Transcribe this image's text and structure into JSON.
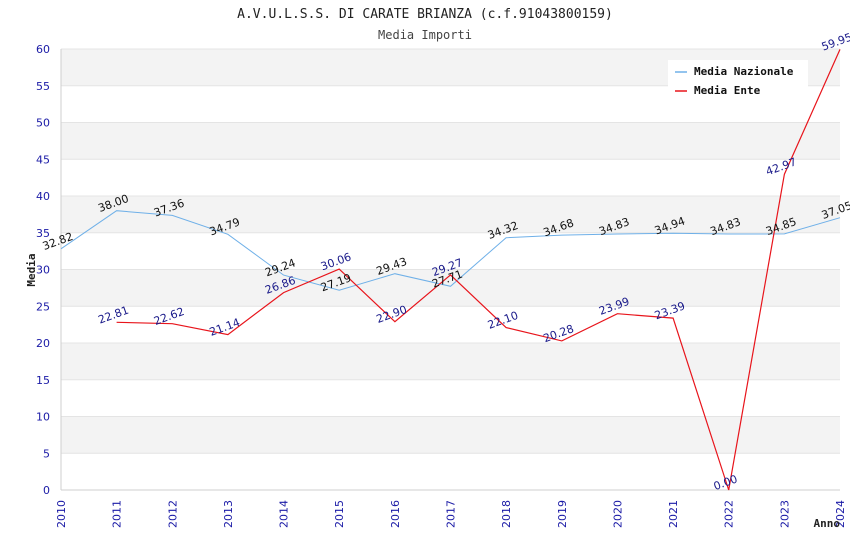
{
  "chart_data": {
    "type": "line",
    "title": "A.V.U.L.S.S. DI CARATE BRIANZA (c.f.91043800159)",
    "subtitle": "Media Importi",
    "xlabel": "Anno",
    "ylabel": "Media",
    "ylim": [
      0,
      60
    ],
    "yticks": [
      0,
      5,
      10,
      15,
      20,
      25,
      30,
      35,
      40,
      45,
      50,
      55,
      60
    ],
    "categories": [
      "2010",
      "2011",
      "2012",
      "2013",
      "2014",
      "2015",
      "2016",
      "2017",
      "2018",
      "2019",
      "2020",
      "2021",
      "2022",
      "2023",
      "2024"
    ],
    "grid": "horizontal alternating bands",
    "legend_position": "top-right",
    "series": [
      {
        "name": "Media Nazionale",
        "color": "#6fb0e8",
        "values": [
          32.82,
          38.0,
          37.36,
          34.79,
          29.24,
          27.19,
          29.43,
          27.71,
          34.32,
          34.68,
          34.83,
          34.94,
          34.83,
          34.85,
          37.05
        ],
        "labels": [
          "32.82",
          "38.00",
          "37.36",
          "34.79",
          "29.24",
          "27.19",
          "29.43",
          "27.71",
          "34.32",
          "34.68",
          "34.83",
          "34.94",
          "34.83",
          "34.85",
          "37.05"
        ]
      },
      {
        "name": "Media Ente",
        "color": "#e8141b",
        "values": [
          null,
          22.81,
          22.62,
          21.14,
          26.86,
          30.06,
          22.9,
          29.27,
          22.1,
          20.28,
          23.99,
          23.39,
          0.0,
          42.97,
          59.95
        ],
        "labels": [
          "",
          "22.81",
          "22.62",
          "21.14",
          "26.86",
          "30.06",
          "22.90",
          "29.27",
          "22.10",
          "20.28",
          "23.99",
          "23.39",
          "0.00",
          "42.97",
          "59.95"
        ]
      }
    ]
  }
}
